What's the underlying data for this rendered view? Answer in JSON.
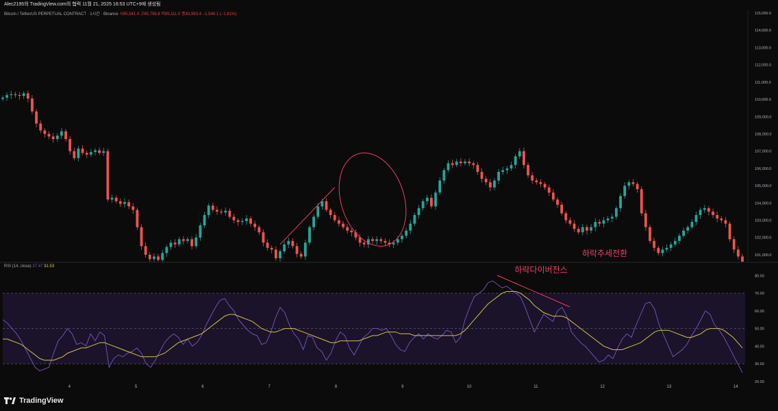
{
  "header": {
    "text": "Alec2195의 TradingView.com의 협력 11월 21, 2025 16:53 UTC+9에 생성됨"
  },
  "legend": {
    "symbol": "Bitcoin / TetherUS PERPETUAL CONTRACT · 1시간 · Binance",
    "ohlc": "시85,541.4 고85,756.8 저85,111.0 종83,993.4 −1,548.1 (−1.81%)"
  },
  "rsi_legend": {
    "label": "RSI (14, close)",
    "rsi_value": "37.47",
    "ma_value": "31.53"
  },
  "annotations": {
    "trend_change": "하락추세전환",
    "bear_divergence": "하락다이버전스"
  },
  "colors": {
    "up": "#26a69a",
    "down": "#ef5350",
    "rsi": "#7e57c2",
    "rsi_ma": "#d4c14a",
    "annotation": "#f23c64",
    "band": "#1d1530"
  },
  "logo": {
    "text": "TradingView",
    "icon": "tradingview-logo-icon"
  },
  "chart_data": [
    {
      "type": "candlestick",
      "title": "Bitcoin / TetherUS PERPETUAL CONTRACT · 1시간 · Binance",
      "y_ticks": [
        "115,000.0",
        "114,000.0",
        "113,000.0",
        "112,000.0",
        "111,000.0",
        "110,000.0",
        "109,000.0",
        "108,000.0",
        "107,000.0",
        "106,000.0",
        "105,000.0",
        "104,000.0",
        "103,000.0",
        "102,000.0",
        "101,000.0"
      ],
      "ylim": [
        100600,
        115200
      ],
      "x_ticks": [
        "4",
        "5",
        "6",
        "7",
        "8",
        "9",
        "10",
        "11",
        "12",
        "13",
        "14"
      ],
      "x_tick_index": [
        10,
        20,
        30,
        40,
        50,
        60,
        70,
        80,
        90,
        100,
        110
      ],
      "xlim": [
        0,
        111
      ],
      "closes": [
        110100,
        110250,
        110300,
        110250,
        110200,
        110350,
        110050,
        109300,
        108600,
        108200,
        108000,
        107850,
        107700,
        107900,
        108150,
        107700,
        107000,
        106600,
        107150,
        106900,
        106800,
        106950,
        107050,
        106900,
        107000,
        104200,
        104300,
        104100,
        103950,
        104050,
        103800,
        103600,
        102600,
        101500,
        101000,
        100750,
        100900,
        100700,
        101100,
        101450,
        101700,
        101600,
        101900,
        101800,
        101900,
        101500,
        102000,
        102700,
        103300,
        103850,
        103600,
        103500,
        103450,
        103550,
        103200,
        103000,
        102900,
        102950,
        103100,
        102800,
        102600,
        102300,
        101700,
        101400,
        101300,
        100800,
        101200,
        101600,
        101800,
        101500,
        101050,
        100900,
        101700,
        102600,
        103200,
        103800,
        104100,
        103600,
        103300,
        103000,
        102800,
        102600,
        102400,
        102300,
        102000,
        101700,
        101600,
        101900,
        101800,
        101900,
        101800,
        101700,
        101600,
        101700,
        101900,
        102100,
        102400,
        102800,
        103300,
        103700,
        104100,
        104300,
        103800,
        104600,
        105300,
        105900,
        106300,
        106200,
        106400,
        106300,
        106400,
        106300,
        106200,
        105800,
        105400,
        105200,
        104900,
        105300,
        105800,
        105900,
        106000,
        106200,
        106700,
        107000,
        106200,
        105600,
        105300,
        105200,
        105100,
        104900,
        104600,
        104200,
        103900,
        103400,
        103000,
        102800,
        102500,
        102300,
        102600,
        102400,
        102600,
        102900,
        102800,
        103000,
        103100,
        103200,
        103700,
        104400,
        105000,
        105200,
        105100,
        104800,
        103400,
        102600,
        101800,
        101400,
        101100,
        101300,
        101400,
        101600,
        101800,
        102100,
        102400,
        102600,
        102900,
        103300,
        103600,
        103700,
        103500,
        103300,
        103100,
        103000,
        102800,
        101900,
        101300,
        100900,
        100500
      ]
    },
    {
      "type": "line",
      "title": "RSI (14, close)",
      "y_ticks": [
        "80.00",
        "70.00",
        "60.00",
        "50.00",
        "40.00",
        "30.00",
        "20.00"
      ],
      "ylim": [
        18,
        84
      ],
      "upper_band": 70,
      "lower_band": 30,
      "middle_line": 50,
      "series": [
        {
          "name": "RSI",
          "values": [
            55,
            53,
            50,
            47,
            43,
            38,
            33,
            28,
            26,
            27,
            28,
            36,
            43,
            46,
            50,
            47,
            41,
            42,
            40,
            47,
            43,
            48,
            46,
            28,
            33,
            35,
            34,
            36,
            37,
            39,
            36,
            30,
            28,
            32,
            37,
            42,
            45,
            47,
            45,
            41,
            44,
            40,
            42,
            46,
            52,
            57,
            62,
            66,
            67,
            63,
            60,
            55,
            52,
            49,
            47,
            46,
            41,
            42,
            48,
            56,
            62,
            59,
            52,
            47,
            44,
            38,
            46,
            45,
            39,
            37,
            32,
            36,
            43,
            48,
            46,
            39,
            35,
            40,
            45,
            47,
            50,
            50,
            49,
            50,
            46,
            41,
            38,
            37,
            42,
            45,
            47,
            44,
            47,
            45,
            44,
            46,
            49,
            48,
            42,
            45,
            55,
            62,
            68,
            70,
            72,
            76,
            77,
            75,
            73,
            74,
            72,
            70,
            68,
            62,
            55,
            48,
            53,
            58,
            56,
            54,
            60,
            62,
            57,
            48,
            45,
            42,
            40,
            37,
            34,
            31,
            32,
            35,
            33,
            39,
            44,
            47,
            45,
            52,
            58,
            64,
            65,
            61,
            52,
            46,
            40,
            34,
            36,
            38,
            41,
            46,
            50,
            55,
            60,
            58,
            52,
            49,
            45,
            40,
            35,
            30,
            25
          ]
        },
        {
          "name": "RSI-based MA",
          "values": [
            44,
            44,
            43,
            42,
            41,
            39,
            37,
            35,
            33,
            32,
            32,
            32,
            33,
            34,
            36,
            37,
            38,
            39,
            39,
            40,
            41,
            42,
            42,
            41,
            40,
            39,
            38,
            37,
            36,
            35,
            34,
            34,
            34,
            34,
            35,
            36,
            38,
            40,
            42,
            43,
            44,
            45,
            46,
            47,
            49,
            51,
            53,
            55,
            57,
            58,
            58,
            57,
            56,
            55,
            54,
            52,
            50,
            49,
            48,
            48,
            49,
            50,
            50,
            50,
            49,
            48,
            47,
            46,
            45,
            44,
            43,
            42,
            42,
            43,
            43,
            43,
            43,
            43,
            44,
            45,
            46,
            46,
            47,
            48,
            48,
            48,
            47,
            47,
            47,
            46,
            46,
            46,
            46,
            46,
            46,
            46,
            46,
            46,
            46,
            47,
            49,
            52,
            55,
            58,
            61,
            64,
            66,
            68,
            70,
            71,
            71,
            71,
            70,
            68,
            66,
            63,
            61,
            59,
            58,
            57,
            57,
            57,
            56,
            54,
            52,
            50,
            48,
            46,
            44,
            42,
            40,
            39,
            38,
            38,
            38,
            39,
            40,
            41,
            42,
            44,
            46,
            48,
            49,
            49,
            49,
            48,
            47,
            46,
            45,
            45,
            46,
            47,
            49,
            50,
            50,
            50,
            49,
            47,
            45,
            42,
            39
          ]
        }
      ]
    }
  ]
}
